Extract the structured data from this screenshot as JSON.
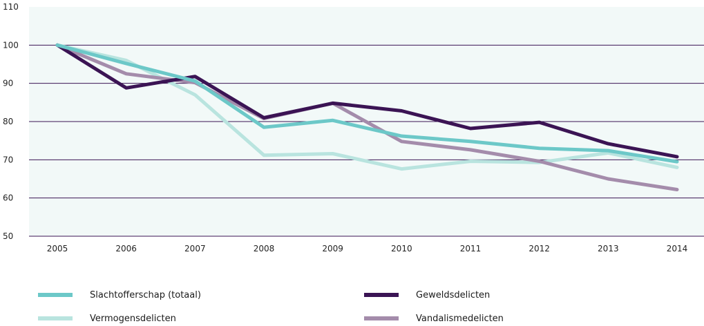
{
  "chart_data": {
    "type": "line",
    "categories": [
      "2005",
      "2006",
      "2007",
      "2008",
      "2009",
      "2010",
      "2011",
      "2012",
      "2013",
      "2014"
    ],
    "ylim": [
      50,
      110
    ],
    "yticks": [
      "50",
      "60",
      "70",
      "80",
      "90",
      "100",
      "110"
    ],
    "grid": true,
    "legend_position": "bottom",
    "series": [
      {
        "name": "Slachtofferschap (totaal)",
        "color": "#6cc8c8",
        "values": [
          100,
          95.2,
          90.6,
          78.5,
          80.3,
          76.2,
          74.8,
          73,
          72.4,
          69.5
        ]
      },
      {
        "name": "Geweldsdelicten",
        "color": "#3b1454",
        "values": [
          100,
          88.8,
          91.8,
          81,
          84.8,
          82.8,
          78.2,
          79.8,
          74.2,
          70.8
        ]
      },
      {
        "name": "Vermogensdelicten",
        "color": "#b9e4df",
        "values": [
          100,
          96,
          87,
          71.2,
          71.6,
          67.6,
          69.6,
          69.3,
          71.8,
          68
        ]
      },
      {
        "name": "Vandalismedelicten",
        "color": "#a48cab",
        "values": [
          100,
          92.5,
          90.2,
          80.8,
          84.8,
          74.8,
          72.6,
          69.6,
          65,
          62.2
        ]
      }
    ]
  },
  "legend": [
    {
      "label": "Slachtofferschap (totaal)",
      "color": "#6cc8c8"
    },
    {
      "label": "Geweldsdelicten",
      "color": "#3b1454"
    },
    {
      "label": "Vermogensdelicten",
      "color": "#b9e4df"
    },
    {
      "label": "Vandalismedelicten",
      "color": "#a48cab"
    }
  ],
  "colors": {
    "plot_background": "#f2f9f8",
    "gridline": "#3b1454"
  }
}
